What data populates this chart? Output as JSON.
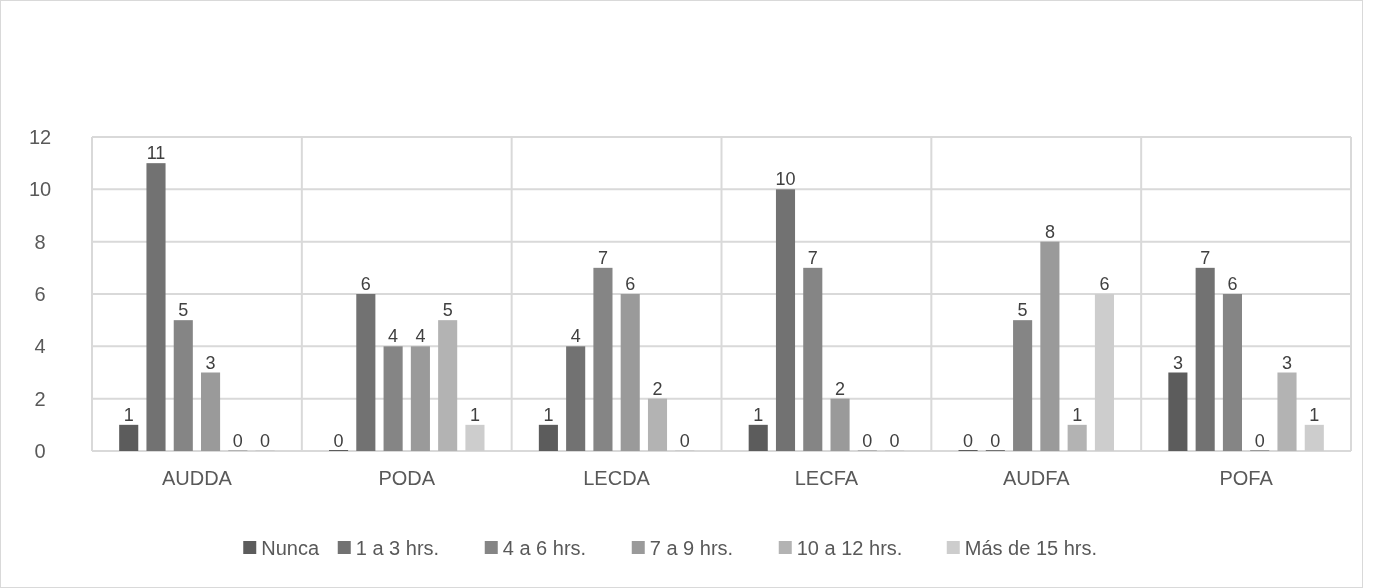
{
  "chart_data": {
    "type": "bar",
    "categories": [
      "AUDDA",
      "PODA",
      "LECDA",
      "LECFA",
      "AUDFA",
      "POFA"
    ],
    "series": [
      {
        "name": "Nunca",
        "color": "#5c5c5c",
        "values": [
          1,
          0,
          1,
          1,
          0,
          3
        ]
      },
      {
        "name": "1 a 3 hrs.",
        "color": "#727272",
        "values": [
          11,
          6,
          4,
          10,
          0,
          7
        ]
      },
      {
        "name": "4 a 6 hrs.",
        "color": "#858585",
        "values": [
          5,
          4,
          7,
          7,
          5,
          6
        ]
      },
      {
        "name": "7 a 9 hrs.",
        "color": "#9a9a9a",
        "values": [
          3,
          4,
          6,
          2,
          8,
          0
        ]
      },
      {
        "name": "10 a 12 hrs.",
        "color": "#b3b3b3",
        "values": [
          0,
          5,
          2,
          0,
          1,
          3
        ]
      },
      {
        "name": "Más de 15 hrs.",
        "color": "#cdcdcd",
        "values": [
          0,
          1,
          0,
          0,
          6,
          1
        ]
      }
    ],
    "ylim": [
      0,
      12
    ],
    "yticks": [
      0,
      2,
      4,
      6,
      8,
      10,
      12
    ],
    "grid": true,
    "legend": "bottom",
    "data_labels": true
  }
}
